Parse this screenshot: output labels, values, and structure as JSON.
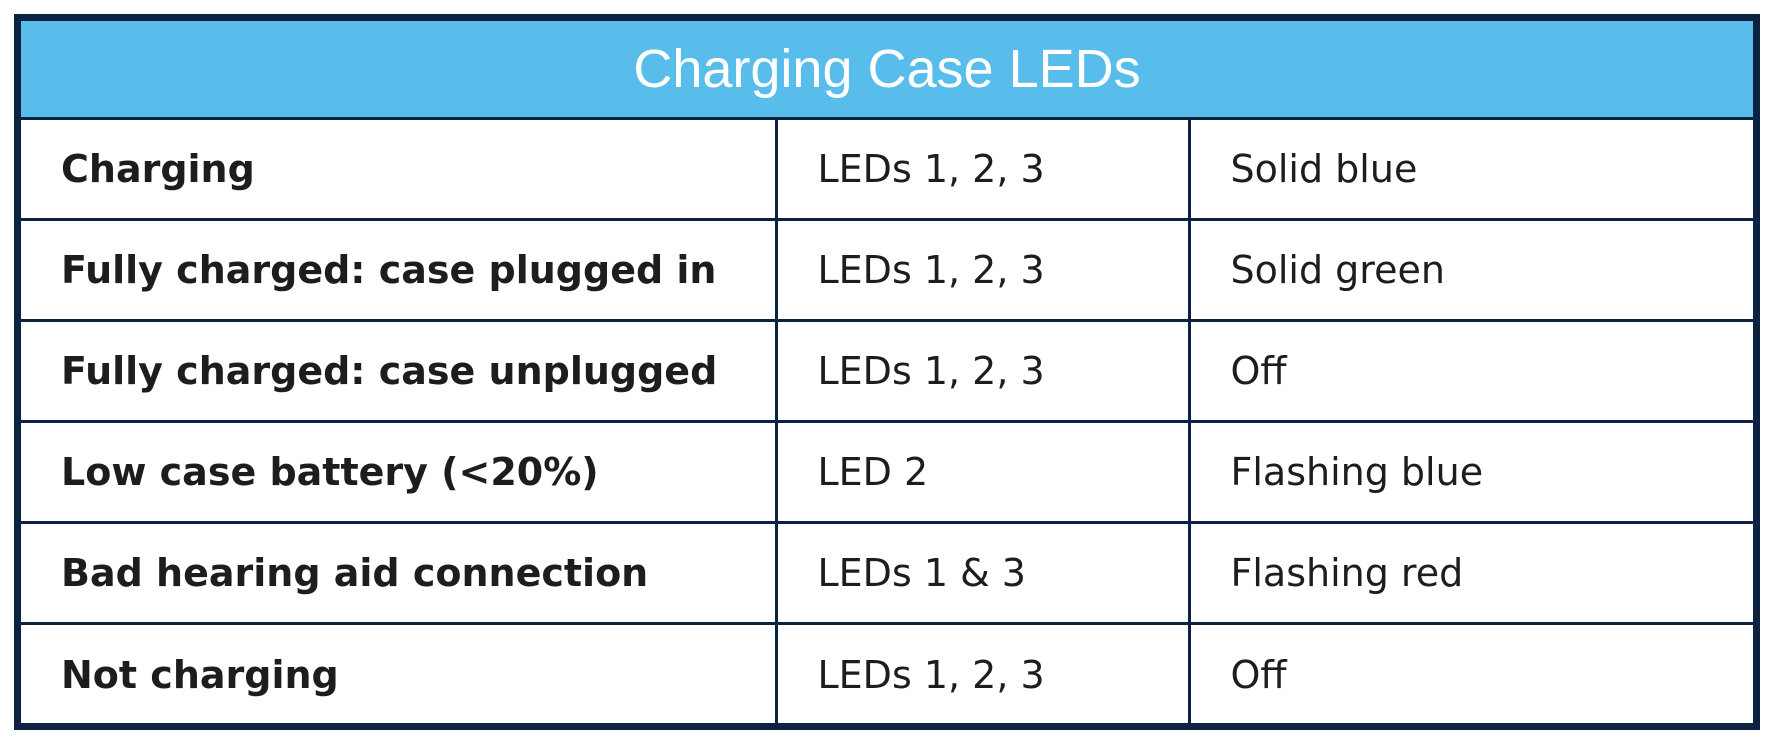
{
  "table": {
    "title": "Charging Case LEDs",
    "rows": [
      [
        "Charging",
        "LEDs 1, 2, 3",
        "Solid blue"
      ],
      [
        "Fully charged: case plugged in",
        "LEDs 1, 2, 3",
        "Solid green"
      ],
      [
        "Fully charged: case unplugged",
        "LEDs 1, 2, 3",
        "Off"
      ],
      [
        "Low case battery (<20%)",
        "LED 2",
        "Flashing blue"
      ],
      [
        "Bad hearing aid connection",
        "LEDs 1 & 3",
        "Flashing red"
      ],
      [
        "Not charging",
        "LEDs 1, 2, 3",
        "Off"
      ]
    ]
  }
}
